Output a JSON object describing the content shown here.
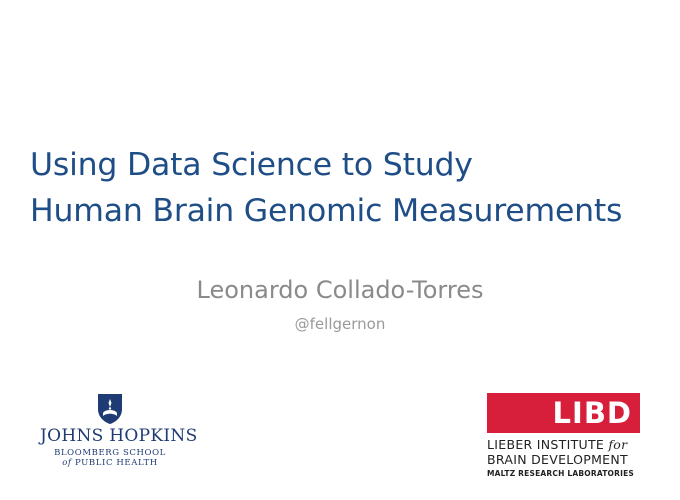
{
  "slide": {
    "title_line1": "Using Data Science to Study",
    "title_line2": "Human Brain Genomic Measurements",
    "author": "Leonardo Collado-Torres",
    "handle": "@fellgernon"
  },
  "logos": {
    "jhu": {
      "name": "JOHNS HOPKINS",
      "sub_line1": "BLOOMBERG SCHOOL",
      "sub_line2_of": "of",
      "sub_line2_rest": "PUBLIC HEALTH"
    },
    "libd": {
      "mark": "LIBD",
      "line1_main": "LIEBER INSTITUTE",
      "line1_for": "for",
      "line2": "BRAIN DEVELOPMENT",
      "line3": "MALTZ RESEARCH LABORATORIES"
    }
  },
  "colors": {
    "title": "#1f4e87",
    "author": "#8a8a8a",
    "jhu_blue": "#1f3b73",
    "libd_red": "#d71f3b"
  }
}
